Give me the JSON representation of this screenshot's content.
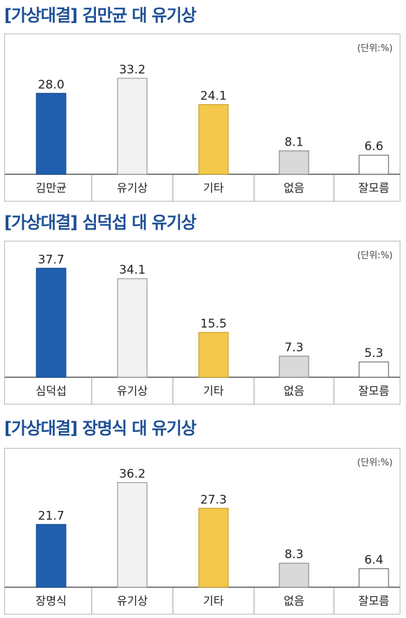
{
  "unit_label": "(단위:%)",
  "colors": {
    "title": "#1d4f95",
    "candidate": "#1f5fae",
    "yoo": "#f2f2f2",
    "other": "#f4c84a",
    "none": "#d9d9d9",
    "dontknow": "#ffffff"
  },
  "chart_data": [
    {
      "type": "bar",
      "title": "[가상대결] 김만균 대 유기상",
      "categories": [
        "김만균",
        "유기상",
        "기타",
        "없음",
        "잘모름"
      ],
      "values": [
        28.0,
        33.2,
        24.1,
        8.1,
        6.6
      ],
      "value_labels": [
        "28.0",
        "33.2",
        "24.1",
        "8.1",
        "6.6"
      ],
      "ylim": [
        0,
        40
      ],
      "grid": false,
      "legend": "none"
    },
    {
      "type": "bar",
      "title": "[가상대결] 심덕섭 대 유기상",
      "categories": [
        "심덕섭",
        "유기상",
        "기타",
        "없음",
        "잘모름"
      ],
      "values": [
        37.7,
        34.1,
        15.5,
        7.3,
        5.3
      ],
      "value_labels": [
        "37.7",
        "34.1",
        "15.5",
        "7.3",
        "5.3"
      ],
      "ylim": [
        0,
        40
      ],
      "grid": false,
      "legend": "none"
    },
    {
      "type": "bar",
      "title": "[가상대결] 장명식 대 유기상",
      "categories": [
        "장명식",
        "유기상",
        "기타",
        "없음",
        "잘모름"
      ],
      "values": [
        21.7,
        36.2,
        27.3,
        8.3,
        6.4
      ],
      "value_labels": [
        "21.7",
        "36.2",
        "27.3",
        "8.3",
        "6.4"
      ],
      "ylim": [
        0,
        40
      ],
      "grid": false,
      "legend": "none"
    }
  ]
}
